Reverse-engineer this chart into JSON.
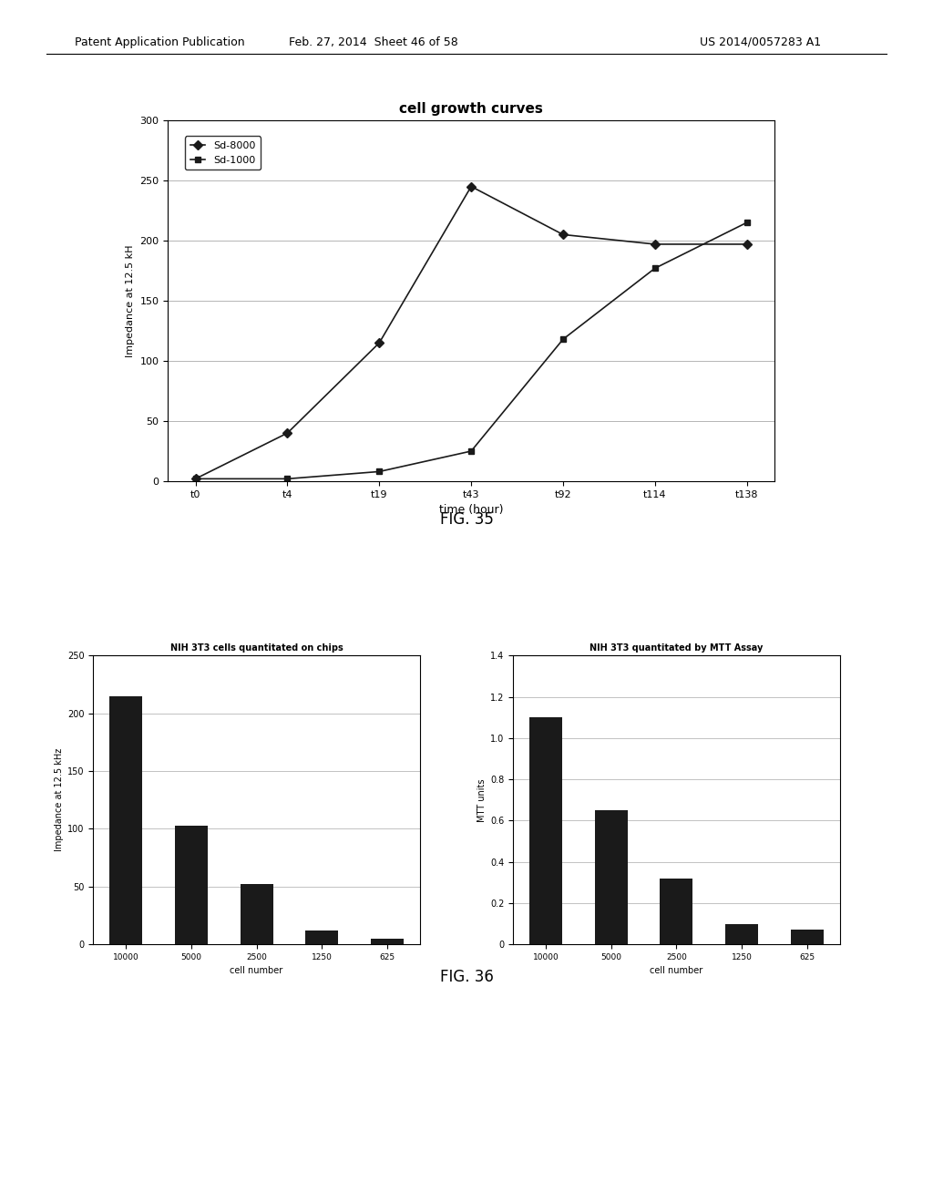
{
  "header_left": "Patent Application Publication",
  "header_mid": "Feb. 27, 2014  Sheet 46 of 58",
  "header_right": "US 2014/0057283 A1",
  "fig35": {
    "title": "cell growth curves",
    "xlabel": "time (hour)",
    "ylabel": "Impedance at 12.5 kH",
    "x_labels": [
      "t0",
      "t4",
      "t19",
      "t43",
      "t92",
      "t114",
      "t138"
    ],
    "sd8000": [
      2,
      40,
      115,
      245,
      205,
      197,
      197
    ],
    "sd1000": [
      2,
      2,
      8,
      25,
      118,
      177,
      215
    ],
    "ylim": [
      0,
      300
    ],
    "yticks": [
      0,
      50,
      100,
      150,
      200,
      250,
      300
    ],
    "legend": [
      "Sd-8000",
      "Sd-1000"
    ]
  },
  "fig36_left": {
    "title": "NIH 3T3 cells quantitated on chips",
    "xlabel": "cell number",
    "ylabel": "Impedance at 12.5 kHz",
    "categories": [
      "10000",
      "5000",
      "2500",
      "1250",
      "625"
    ],
    "values": [
      215,
      103,
      52,
      12,
      5
    ],
    "ylim": [
      0,
      250
    ],
    "yticks": [
      0,
      50,
      100,
      150,
      200,
      250
    ]
  },
  "fig36_right": {
    "title": "NIH 3T3 quantitated by MTT Assay",
    "xlabel": "cell number",
    "ylabel": "MTT units",
    "categories": [
      "10000",
      "5000",
      "2500",
      "1250",
      "625"
    ],
    "values": [
      1.1,
      0.65,
      0.32,
      0.1,
      0.07
    ],
    "ylim": [
      0,
      1.4
    ],
    "yticks": [
      0,
      0.2,
      0.4,
      0.6,
      0.8,
      1.0,
      1.2,
      1.4
    ]
  },
  "fig35_label": "FIG. 35",
  "fig36_label": "FIG. 36",
  "bg_color": "#ffffff",
  "bar_color": "#1a1a1a",
  "line_color": "#1a1a1a",
  "box_facecolor": "#ffffff",
  "box_edgecolor": "#000000"
}
